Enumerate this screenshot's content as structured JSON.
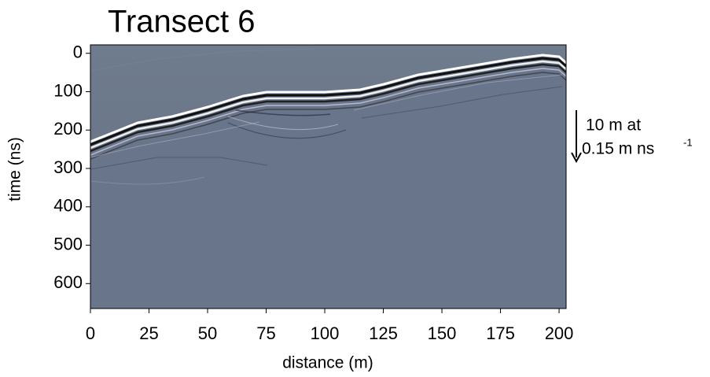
{
  "chart_data": {
    "type": "image",
    "title": "Transect 6",
    "xlabel": "distance (m)",
    "ylabel": "time (ns)",
    "xlim": [
      0,
      203
    ],
    "xticks": [
      0,
      25,
      50,
      75,
      100,
      125,
      150,
      175,
      200
    ],
    "ylim": [
      -22,
      665
    ],
    "yticks": [
      0,
      100,
      200,
      300,
      400,
      500,
      600
    ],
    "y_inverted": true,
    "annotation": {
      "line1": "10 m at",
      "line2": "0.15 m ns",
      "superscript": "-1"
    }
  }
}
